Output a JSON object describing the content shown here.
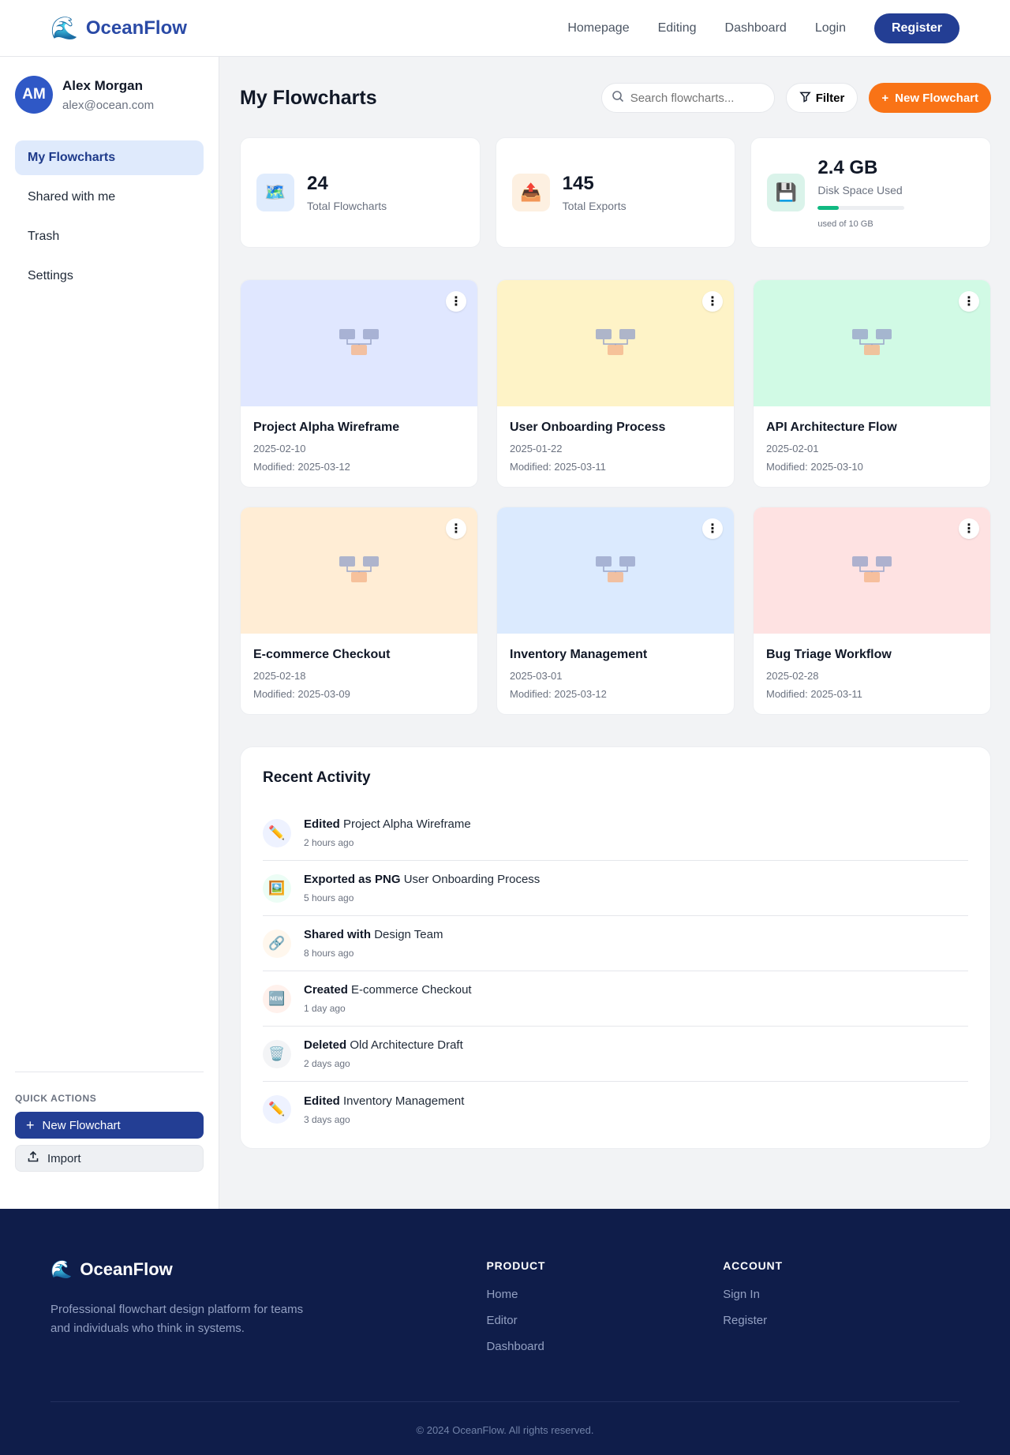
{
  "brand": {
    "name": "OceanFlow",
    "icon": "wave-icon"
  },
  "topnav": {
    "links": [
      "Homepage",
      "Editing",
      "Dashboard",
      "Login"
    ],
    "register_label": "Register"
  },
  "user": {
    "initials": "AM",
    "name": "Alex Morgan",
    "email": "alex@ocean.com"
  },
  "sidebar": {
    "items": [
      {
        "label": "My Flowcharts",
        "active": true
      },
      {
        "label": "Shared with me"
      },
      {
        "label": "Trash"
      },
      {
        "label": "Settings"
      }
    ],
    "quick_actions_title": "QUICK ACTIONS",
    "quick_new_label": "New Flowchart",
    "quick_import_label": "Import"
  },
  "main": {
    "title": "My Flowcharts",
    "search_placeholder": "Search flowcharts...",
    "filter_label": "Filter",
    "new_label": "New Flowchart"
  },
  "stats": [
    {
      "value": "24",
      "label": "Total Flowcharts",
      "icon": "map-icon"
    },
    {
      "value": "145",
      "label": "Total Exports",
      "icon": "outbox-icon"
    },
    {
      "value": "2.4 GB",
      "label": "Disk Space Used",
      "note": "used of 10 GB",
      "fraction": 0.24,
      "icon": "floppy-disk-icon"
    }
  ],
  "cards": [
    {
      "title": "Project Alpha Wireframe",
      "date": "2025-02-10",
      "modified": "Modified: 2025-03-12",
      "bg": "#e0e7ff"
    },
    {
      "title": "User Onboarding Process",
      "date": "2025-01-22",
      "modified": "Modified: 2025-03-11",
      "bg": "#fef3c7"
    },
    {
      "title": "API Architecture Flow",
      "date": "2025-02-01",
      "modified": "Modified: 2025-03-10",
      "bg": "#d1fae5"
    },
    {
      "title": "E-commerce Checkout",
      "date": "2025-02-18",
      "modified": "Modified: 2025-03-09",
      "bg": "#ffedd5"
    },
    {
      "title": "Inventory Management",
      "date": "2025-03-01",
      "modified": "Modified: 2025-03-12",
      "bg": "#dbeafe"
    },
    {
      "title": "Bug Triage Workflow",
      "date": "2025-02-28",
      "modified": "Modified: 2025-03-11",
      "bg": "#fee2e2"
    }
  ],
  "activity": {
    "title": "Recent Activity",
    "items": [
      {
        "action": "Edited",
        "target": "Project Alpha Wireframe",
        "time": "2 hours ago",
        "icon": "pencil-icon",
        "bg": "#eef2ff"
      },
      {
        "action": "Exported as PNG",
        "target": "User Onboarding Process",
        "time": "5 hours ago",
        "icon": "picture-icon",
        "bg": "#ecfdf5"
      },
      {
        "action": "Shared with",
        "target": "Design Team",
        "time": "8 hours ago",
        "icon": "link-icon",
        "bg": "#fff7ed"
      },
      {
        "action": "Created",
        "target": "E-commerce Checkout",
        "time": "1 day ago",
        "icon": "new-icon",
        "bg": "#fff1ec"
      },
      {
        "action": "Deleted",
        "target": "Old Architecture Draft",
        "time": "2 days ago",
        "icon": "trash-icon",
        "bg": "#f3f4f6"
      },
      {
        "action": "Edited",
        "target": "Inventory Management",
        "time": "3 days ago",
        "icon": "pencil-icon",
        "bg": "#eef2ff"
      }
    ]
  },
  "footer": {
    "brand": "OceanFlow",
    "description": "Professional flowchart design platform for teams and individuals who think in systems.",
    "product_title": "PRODUCT",
    "product_links": [
      "Home",
      "Editor",
      "Dashboard"
    ],
    "account_title": "ACCOUNT",
    "account_links": [
      "Sign In",
      "Register"
    ],
    "copyright": "© 2024 OceanFlow. All rights reserved."
  }
}
